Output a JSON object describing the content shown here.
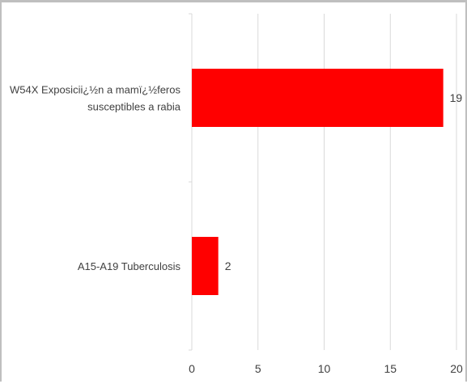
{
  "chart_data": {
    "type": "bar",
    "orientation": "horizontal",
    "categories": [
      "W54X Exposicii¿½n a mamï¿½feros susceptibles a rabia",
      "A15-A19 Tuberculosis"
    ],
    "category_lines": [
      [
        "W54X Exposicii¿½n a mamï¿½feros",
        "susceptibles a rabia"
      ],
      [
        "A15-A19 Tuberculosis"
      ]
    ],
    "values": [
      19,
      2
    ],
    "data_labels": [
      "19",
      "2"
    ],
    "xlim": [
      0,
      20
    ],
    "x_ticks": [
      0,
      5,
      10,
      15,
      20
    ],
    "x_tick_labels": [
      "0",
      "5",
      "10",
      "15",
      "20"
    ],
    "grid": true,
    "legend": "none",
    "colors": {
      "bar": "#ff0000",
      "grid": "#d9d9d9",
      "text": "#404040"
    }
  }
}
